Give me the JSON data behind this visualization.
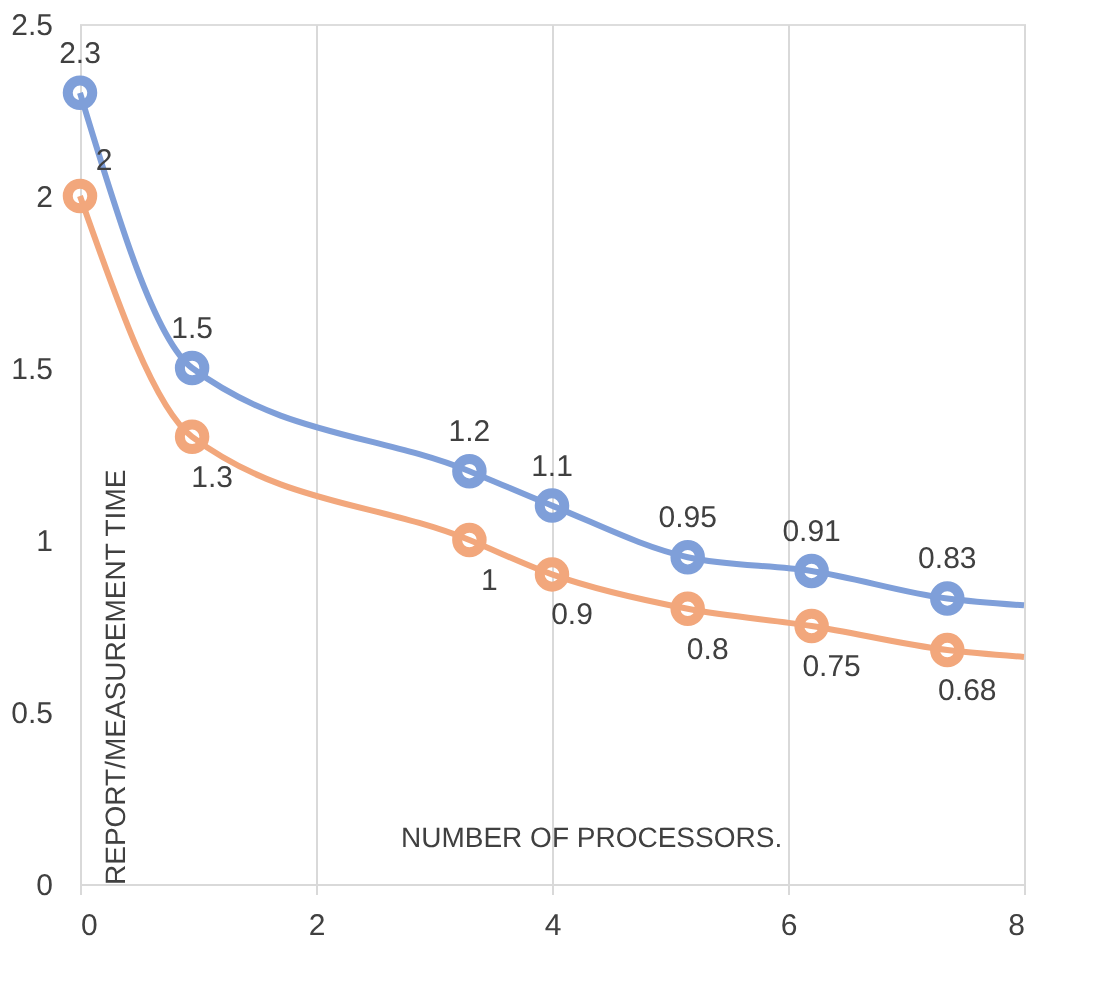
{
  "chart_data": {
    "type": "line",
    "xlabel": "NUMBER OF PROCESSORS.",
    "ylabel": "REPORT/MEASUREMENT TIME",
    "x": [
      0,
      0.95,
      3.3,
      4,
      5.15,
      6.2,
      7.35,
      8
    ],
    "series": [
      {
        "color": "#7f9fd9",
        "values": [
          2.3,
          1.5,
          1.2,
          1.1,
          0.95,
          0.91,
          0.83,
          0.81
        ],
        "value_labels": [
          "2.3",
          "1.5",
          "1.2",
          "1.1",
          "0.95",
          "0.91",
          "0.83",
          null
        ]
      },
      {
        "color": "#f2a77c",
        "values": [
          2,
          1.3,
          1,
          0.9,
          0.8,
          0.75,
          0.68,
          0.66
        ],
        "value_labels": [
          "2",
          "1.3",
          "1",
          "0.9",
          "0.8",
          "0.75",
          "0.68",
          null
        ]
      }
    ],
    "xlim": [
      0,
      8
    ],
    "xticks": [
      0,
      2,
      4,
      6,
      8
    ],
    "ylim": [
      0,
      2.5
    ],
    "yticks": [
      0,
      0.5,
      1,
      1.5,
      2,
      2.5
    ],
    "grid": "x",
    "marker": "circle",
    "line_style": "solid"
  }
}
